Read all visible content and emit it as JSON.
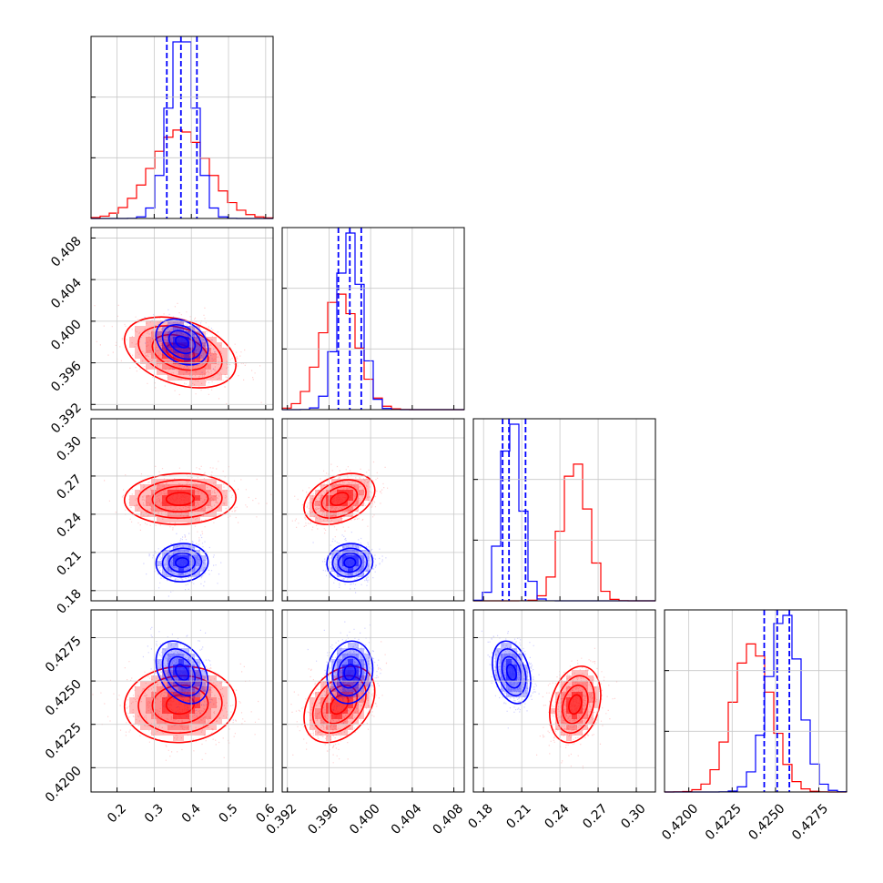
{
  "chart_data": {
    "type": "corner",
    "grid": true,
    "colors": {
      "series_a": "#ff0000",
      "series_b": "#0000ff"
    },
    "series": [
      {
        "color": "#ff0000",
        "means": [
          0.37,
          0.397,
          0.252,
          0.42365
        ],
        "sigmas": [
          0.075,
          0.0017,
          0.01,
          0.0011
        ],
        "corr": [
          [
            1,
            -0.35,
            0.05,
            0.05
          ],
          [
            -0.35,
            1,
            0.35,
            0.35
          ],
          [
            0.05,
            0.35,
            1,
            0.25
          ],
          [
            0.05,
            0.35,
            0.25,
            1
          ]
        ]
      },
      {
        "color": "#0000ff",
        "means": [
          0.375,
          0.398,
          0.202,
          0.4255
        ],
        "sigmas": [
          0.035,
          0.0011,
          0.0075,
          0.0009
        ],
        "corr": [
          [
            1,
            -0.3,
            0.05,
            -0.35
          ],
          [
            -0.3,
            1,
            0.05,
            0.1
          ],
          [
            0.05,
            0.05,
            1,
            -0.3
          ],
          [
            -0.35,
            0.1,
            -0.3,
            1
          ]
        ],
        "quantile_lines": [
          [
            0.334,
            0.372,
            0.415
          ],
          [
            0.3969,
            0.398,
            0.3991
          ],
          [
            0.195,
            0.2,
            0.213
          ],
          [
            0.42435,
            0.4251,
            0.4258
          ]
        ]
      }
    ],
    "parameters": [
      {
        "range": [
          0.13,
          0.62
        ],
        "ticks": [
          0.2,
          0.3,
          0.4,
          0.5,
          0.6
        ],
        "tick_labels": [
          "0.2",
          "0.3",
          "0.4",
          "0.5",
          "0.6"
        ]
      },
      {
        "range": [
          0.3915,
          0.409
        ],
        "ticks": [
          0.392,
          0.396,
          0.4,
          0.404,
          0.408
        ],
        "tick_labels": [
          "0.392",
          "0.396",
          "0.400",
          "0.404",
          "0.408"
        ]
      },
      {
        "range": [
          0.172,
          0.315
        ],
        "ticks": [
          0.18,
          0.21,
          0.24,
          0.27,
          0.3
        ],
        "tick_labels": [
          "0.18",
          "0.21",
          "0.24",
          "0.27",
          "0.30"
        ]
      },
      {
        "range": [
          0.4186,
          0.4291
        ],
        "ticks": [
          0.42,
          0.4225,
          0.425,
          0.4275
        ],
        "tick_labels": [
          "0.4200",
          "0.4225",
          "0.4250",
          "0.4275"
        ]
      }
    ]
  }
}
